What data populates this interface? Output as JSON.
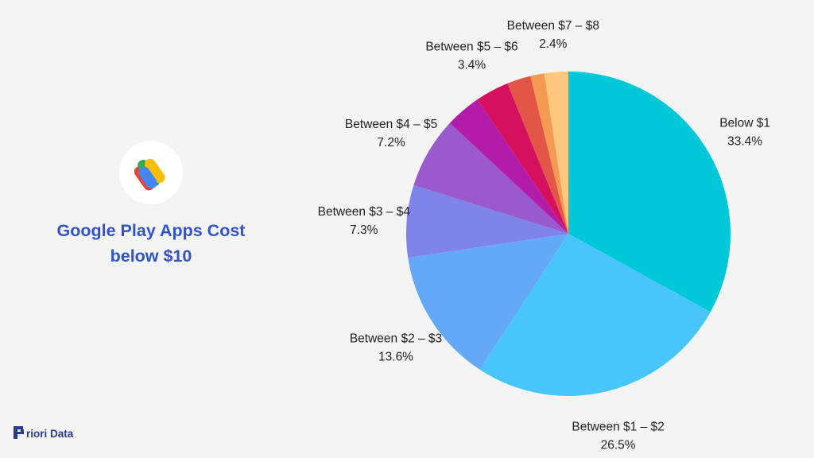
{
  "title": {
    "line1": "Google Play Apps Cost",
    "line2": "below $10"
  },
  "brand": {
    "name": "riori Data",
    "logo_icon": "priori-data-logo-icon",
    "color": "#2a3b8f"
  },
  "app_logo": {
    "icon": "google-pay-logo-icon",
    "colors": [
      "#4285f4",
      "#34a853",
      "#fbbc04",
      "#ea4335"
    ]
  },
  "chart_data": {
    "type": "pie",
    "title": "Google Play Apps Cost below $10",
    "start_angle_deg": 0,
    "direction": "clockwise",
    "slices": [
      {
        "label": "Below $1",
        "value": 33.4,
        "value_label": "33.4%",
        "color": "#00c8d9"
      },
      {
        "label": "Between $1 – $2",
        "value": 26.5,
        "value_label": "26.5%",
        "color": "#48c6fb"
      },
      {
        "label": "Between $2 – $3",
        "value": 13.6,
        "value_label": "13.6%",
        "color": "#64a9f8"
      },
      {
        "label": "Between $3 – $4",
        "value": 7.3,
        "value_label": "7.3%",
        "color": "#7f84e8"
      },
      {
        "label": "Between $4 – $5",
        "value": 7.2,
        "value_label": "7.2%",
        "color": "#9a5acd"
      },
      {
        "label": "",
        "value": 3.6,
        "value_label": "",
        "color": "#b31ca8"
      },
      {
        "label": "Between $5 – $6",
        "value": 3.4,
        "value_label": "3.4%",
        "color": "#d5105f"
      },
      {
        "label": "",
        "value": 2.4,
        "value_label": "",
        "color": "#e35546"
      },
      {
        "label": "",
        "value": 1.4,
        "value_label": "",
        "color": "#f59a53"
      },
      {
        "label": "Between $7 – $8",
        "value": 2.4,
        "value_label": "2.4%",
        "color": "#fdc87d"
      }
    ]
  }
}
